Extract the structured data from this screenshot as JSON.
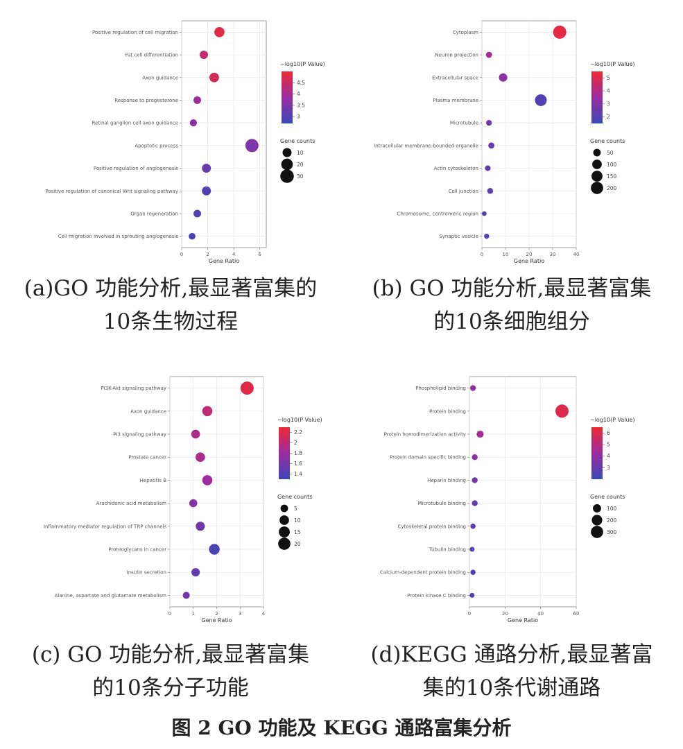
{
  "colors": {
    "low": "#3a48b8",
    "mid": "#9b2ca0",
    "high": "#ee2a33"
  },
  "chart_data": [
    {
      "type": "scatter",
      "xlabel": "Gene Ratio",
      "xlim": [
        0,
        6.5
      ],
      "xticks": [
        0,
        2,
        4,
        6
      ],
      "categories": [
        "Positive regulation of cell migration",
        "Fat cell differentiation",
        "Axon guidance",
        "Response to progesterone",
        "Retinal ganglion cell axon guidance",
        "Apoptotic process",
        "Positive regulation of angiogenesis",
        "Positive regulation of canonical Wnt signaling pathway",
        "Organ regeneration",
        "Cell migration involved in sprouting angiogenesis"
      ],
      "x": [
        2.9,
        1.7,
        2.5,
        1.2,
        0.9,
        5.4,
        1.9,
        1.9,
        1.2,
        0.8
      ],
      "color_values": [
        4.8,
        4.4,
        4.6,
        3.9,
        3.7,
        3.5,
        3.2,
        3.0,
        3.0,
        2.9
      ],
      "size_values": [
        14,
        8,
        12,
        6,
        5,
        28,
        10,
        10,
        6,
        4
      ],
      "color_legend": {
        "title": "−log10(P Value)",
        "range": [
          2.7,
          5.0
        ],
        "ticks": [
          3.0,
          3.5,
          4.0,
          4.5
        ]
      },
      "size_legend": {
        "title": "Gene counts",
        "ticks": [
          10,
          20,
          30
        ]
      },
      "caption": [
        "(a)GO 功能分析,最显著富集的",
        "10条生物过程"
      ]
    },
    {
      "type": "scatter",
      "xlabel": "Gene Ratio",
      "xlim": [
        0,
        40
      ],
      "xticks": [
        0,
        10,
        20,
        30,
        40
      ],
      "categories": [
        "Cytoplasm",
        "Neuron projection",
        "Extracellular space",
        "Plasma membrane",
        "Microtubule",
        "Intracellular membrane-bounded organelle",
        "Actin cytoskeleton",
        "Cell junction",
        "Chromosome, centromeric region",
        "Synaptic vesicle"
      ],
      "x": [
        33,
        3,
        9,
        25,
        3,
        4,
        2.5,
        3.5,
        1,
        2
      ],
      "color_values": [
        5.2,
        3.8,
        3.2,
        2.0,
        2.5,
        2.3,
        2.2,
        2.3,
        2.0,
        2.0
      ],
      "size_values": [
        240,
        25,
        70,
        180,
        20,
        25,
        18,
        22,
        8,
        12
      ],
      "color_legend": {
        "title": "−log10(P Value)",
        "range": [
          1.5,
          5.5
        ],
        "ticks": [
          2,
          3,
          4,
          5
        ]
      },
      "size_legend": {
        "title": "Gene counts",
        "ticks": [
          50,
          100,
          150,
          200
        ]
      },
      "caption": [
        "(b) GO 功能分析,最显著富集",
        "的10条细胞组分"
      ]
    },
    {
      "type": "scatter",
      "xlabel": "Gene Ratio",
      "xlim": [
        0,
        4
      ],
      "xticks": [
        0,
        1,
        2,
        3,
        4
      ],
      "categories": [
        "PI3K-Akt signaling pathway",
        "Axon guidance",
        "PI3 signaling pathway",
        "Prostate cancer",
        "Hepatitis B",
        "Arachidonic acid metabolism",
        "Inflammatory mediator regulation of TRP channels",
        "Proteoglycans in cancer",
        "Insulin secretion",
        "Alanine, aspartate and glutamate metabolism"
      ],
      "x": [
        3.3,
        1.6,
        1.1,
        1.3,
        1.6,
        1.0,
        1.3,
        1.9,
        1.1,
        0.7
      ],
      "color_values": [
        2.2,
        2.0,
        1.9,
        1.9,
        1.8,
        1.7,
        1.6,
        1.4,
        1.5,
        1.6
      ],
      "size_values": [
        24,
        12,
        8,
        10,
        12,
        6,
        9,
        14,
        7,
        4
      ],
      "color_legend": {
        "title": "−log10(P Value)",
        "range": [
          1.3,
          2.3
        ],
        "ticks": [
          1.4,
          1.6,
          1.8,
          2.0,
          2.2
        ]
      },
      "size_legend": {
        "title": "Gene counts",
        "ticks": [
          5,
          10,
          15,
          20
        ]
      },
      "caption": [
        "(c) GO 功能分析,最显著富集",
        "的10条分子功能"
      ]
    },
    {
      "type": "scatter",
      "xlabel": "Gene Ratio",
      "xlim": [
        0,
        60
      ],
      "xticks": [
        0,
        20,
        40,
        60
      ],
      "categories": [
        "Phospholipid binding",
        "Protein binding",
        "Protein homodimerization activity",
        "Protein domain specific binding",
        "Heparin binding",
        "Microtubule binding",
        "Cytoskeletal protein binding",
        "Tubulin binding",
        "Calcium-dependent protein binding",
        "Protein kinase C binding"
      ],
      "x": [
        2,
        52,
        6,
        3,
        3,
        3,
        2,
        1.5,
        2,
        1.5
      ],
      "color_values": [
        4.0,
        6.0,
        4.5,
        3.8,
        3.3,
        3.0,
        2.8,
        2.6,
        2.5,
        2.5
      ],
      "size_values": [
        30,
        360,
        60,
        30,
        30,
        30,
        20,
        15,
        20,
        15
      ],
      "color_legend": {
        "title": "−log10(P Value)",
        "range": [
          2.0,
          6.5
        ],
        "ticks": [
          3,
          4,
          5,
          6
        ]
      },
      "size_legend": {
        "title": "Gene counts",
        "ticks": [
          100,
          200,
          300
        ]
      },
      "caption": [
        "(d)KEGG 通路分析,最显著富",
        "集的10条代谢通路"
      ]
    }
  ],
  "figure_title": "图 2 GO 功能及 KEGG 通路富集分析"
}
